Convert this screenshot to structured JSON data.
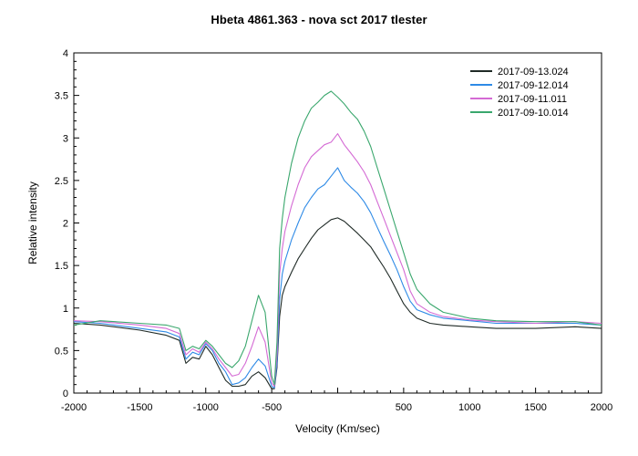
{
  "chart_data": {
    "type": "line",
    "title": "Hbeta 4861.363 - nova sct 2017   tlester",
    "xlabel": "Velocity (Km/sec)",
    "ylabel": "Relative intensity",
    "xlim": [
      -2000,
      2000
    ],
    "ylim": [
      0,
      4
    ],
    "x_ticks": [
      "-2000",
      "-1500",
      "-1000",
      "-500",
      "",
      "500",
      "1000",
      "1500",
      "2000"
    ],
    "y_ticks": [
      "0",
      "0.5",
      "1",
      "1.5",
      "2",
      "2.5",
      "3",
      "3.5",
      "4"
    ],
    "grid": false,
    "legend_position": "top-right",
    "series": [
      {
        "name": "2017-09-13.024",
        "color": "#1f2a26",
        "x": [
          -2000,
          -1800,
          -1500,
          -1300,
          -1200,
          -1150,
          -1100,
          -1050,
          -1000,
          -950,
          -900,
          -850,
          -800,
          -750,
          -700,
          -650,
          -600,
          -550,
          -500,
          -480,
          -460,
          -440,
          -420,
          -400,
          -350,
          -300,
          -250,
          -200,
          -150,
          -100,
          -50,
          0,
          50,
          100,
          150,
          200,
          250,
          300,
          350,
          400,
          450,
          500,
          550,
          600,
          700,
          800,
          1000,
          1200,
          1500,
          1800,
          2000
        ],
        "y": [
          0.82,
          0.8,
          0.74,
          0.68,
          0.62,
          0.35,
          0.42,
          0.4,
          0.55,
          0.45,
          0.3,
          0.15,
          0.08,
          0.08,
          0.1,
          0.2,
          0.25,
          0.18,
          0.05,
          0.05,
          0.3,
          0.9,
          1.15,
          1.25,
          1.42,
          1.58,
          1.7,
          1.82,
          1.92,
          1.98,
          2.04,
          2.06,
          2.02,
          1.95,
          1.88,
          1.8,
          1.72,
          1.6,
          1.48,
          1.35,
          1.2,
          1.05,
          0.95,
          0.88,
          0.82,
          0.8,
          0.78,
          0.76,
          0.76,
          0.78,
          0.76
        ]
      },
      {
        "name": "2017-09-12.014",
        "color": "#2e8ae6",
        "x": [
          -2000,
          -1800,
          -1500,
          -1300,
          -1200,
          -1150,
          -1100,
          -1050,
          -1000,
          -950,
          -900,
          -850,
          -800,
          -750,
          -700,
          -650,
          -600,
          -550,
          -500,
          -480,
          -460,
          -440,
          -420,
          -400,
          -350,
          -300,
          -250,
          -200,
          -150,
          -100,
          -50,
          0,
          50,
          100,
          150,
          200,
          250,
          300,
          350,
          400,
          450,
          500,
          550,
          600,
          700,
          800,
          1000,
          1200,
          1500,
          1800,
          2000
        ],
        "y": [
          0.84,
          0.82,
          0.76,
          0.72,
          0.66,
          0.4,
          0.48,
          0.45,
          0.58,
          0.5,
          0.35,
          0.25,
          0.1,
          0.12,
          0.18,
          0.3,
          0.4,
          0.32,
          0.08,
          0.06,
          0.35,
          1.1,
          1.4,
          1.55,
          1.8,
          2.0,
          2.18,
          2.3,
          2.4,
          2.45,
          2.55,
          2.65,
          2.5,
          2.42,
          2.35,
          2.25,
          2.12,
          1.95,
          1.78,
          1.62,
          1.45,
          1.25,
          1.08,
          0.98,
          0.92,
          0.88,
          0.85,
          0.82,
          0.82,
          0.82,
          0.8
        ]
      },
      {
        "name": "2017-09-11.011",
        "color": "#d46ad4",
        "x": [
          -2000,
          -1800,
          -1500,
          -1300,
          -1200,
          -1150,
          -1100,
          -1050,
          -1000,
          -950,
          -900,
          -850,
          -800,
          -750,
          -700,
          -650,
          -600,
          -550,
          -500,
          -480,
          -460,
          -440,
          -420,
          -400,
          -350,
          -300,
          -250,
          -200,
          -150,
          -100,
          -50,
          0,
          50,
          100,
          150,
          200,
          250,
          300,
          350,
          400,
          450,
          500,
          550,
          600,
          700,
          800,
          1000,
          1200,
          1500,
          1800,
          2000
        ],
        "y": [
          0.85,
          0.84,
          0.8,
          0.76,
          0.7,
          0.45,
          0.52,
          0.48,
          0.6,
          0.52,
          0.4,
          0.3,
          0.2,
          0.22,
          0.35,
          0.55,
          0.78,
          0.6,
          0.12,
          0.08,
          0.45,
          1.4,
          1.7,
          1.9,
          2.2,
          2.45,
          2.65,
          2.78,
          2.85,
          2.92,
          2.95,
          3.05,
          2.92,
          2.82,
          2.72,
          2.6,
          2.45,
          2.25,
          2.05,
          1.85,
          1.65,
          1.45,
          1.2,
          1.05,
          0.95,
          0.9,
          0.86,
          0.84,
          0.82,
          0.84,
          0.82
        ]
      },
      {
        "name": "2017-09-10.014",
        "color": "#3aa76d",
        "x": [
          -2000,
          -1800,
          -1500,
          -1300,
          -1200,
          -1150,
          -1100,
          -1050,
          -1000,
          -950,
          -900,
          -850,
          -800,
          -750,
          -700,
          -650,
          -600,
          -550,
          -500,
          -480,
          -460,
          -440,
          -420,
          -400,
          -350,
          -300,
          -250,
          -200,
          -150,
          -100,
          -50,
          0,
          50,
          100,
          150,
          200,
          250,
          300,
          350,
          400,
          450,
          500,
          550,
          600,
          700,
          800,
          1000,
          1200,
          1500,
          1800,
          2000
        ],
        "y": [
          0.8,
          0.85,
          0.82,
          0.8,
          0.76,
          0.5,
          0.55,
          0.52,
          0.62,
          0.55,
          0.45,
          0.35,
          0.3,
          0.38,
          0.55,
          0.85,
          1.15,
          0.95,
          0.2,
          0.1,
          0.6,
          1.7,
          2.05,
          2.3,
          2.7,
          3.0,
          3.2,
          3.35,
          3.42,
          3.5,
          3.55,
          3.48,
          3.4,
          3.3,
          3.22,
          3.08,
          2.9,
          2.65,
          2.4,
          2.15,
          1.9,
          1.65,
          1.4,
          1.22,
          1.05,
          0.95,
          0.88,
          0.85,
          0.84,
          0.84,
          0.8
        ]
      }
    ]
  }
}
